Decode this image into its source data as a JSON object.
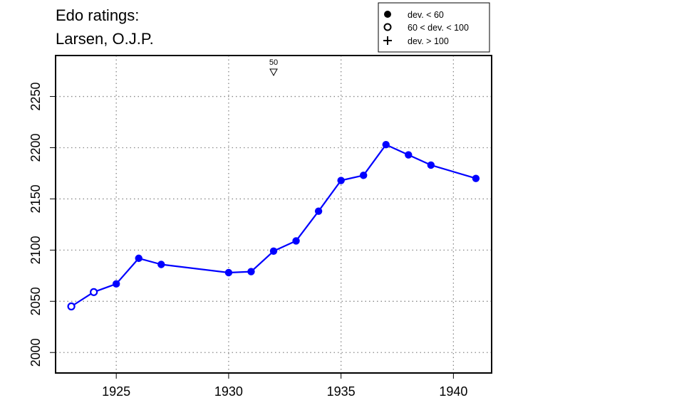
{
  "chart_data": {
    "type": "line",
    "title_lines": [
      "Edo ratings:",
      "Larsen, O.J.P."
    ],
    "xlabel": "",
    "ylabel": "",
    "xlim": [
      1922.3,
      1941.7
    ],
    "ylim": [
      1980,
      2290
    ],
    "x_ticks": [
      1925,
      1930,
      1935,
      1940
    ],
    "y_ticks": [
      2000,
      2050,
      2100,
      2150,
      2200,
      2250
    ],
    "grid": true,
    "series_color": "#0000ff",
    "points": [
      {
        "x": 1923,
        "y": 2045,
        "marker": "open"
      },
      {
        "x": 1924,
        "y": 2059,
        "marker": "open"
      },
      {
        "x": 1925,
        "y": 2067,
        "marker": "filled"
      },
      {
        "x": 1926,
        "y": 2092,
        "marker": "filled"
      },
      {
        "x": 1927,
        "y": 2086,
        "marker": "filled"
      },
      {
        "x": 1930,
        "y": 2078,
        "marker": "filled"
      },
      {
        "x": 1931,
        "y": 2079,
        "marker": "filled"
      },
      {
        "x": 1932,
        "y": 2099,
        "marker": "filled"
      },
      {
        "x": 1933,
        "y": 2109,
        "marker": "filled"
      },
      {
        "x": 1934,
        "y": 2138,
        "marker": "filled"
      },
      {
        "x": 1935,
        "y": 2168,
        "marker": "filled"
      },
      {
        "x": 1936,
        "y": 2173,
        "marker": "filled"
      },
      {
        "x": 1937,
        "y": 2203,
        "marker": "filled"
      },
      {
        "x": 1938,
        "y": 2193,
        "marker": "filled"
      },
      {
        "x": 1939,
        "y": 2183,
        "marker": "filled"
      },
      {
        "x": 1941,
        "y": 2170,
        "marker": "filled"
      }
    ],
    "annotations": [
      {
        "x": 1932,
        "label": "50",
        "symbol": "open-triangle-down"
      }
    ],
    "legend": {
      "placement": "top-right",
      "items": [
        {
          "marker": "filled",
          "label": "dev. < 60"
        },
        {
          "marker": "open",
          "label": "60 < dev. < 100"
        },
        {
          "marker": "plus",
          "label": "dev. > 100"
        }
      ]
    }
  }
}
